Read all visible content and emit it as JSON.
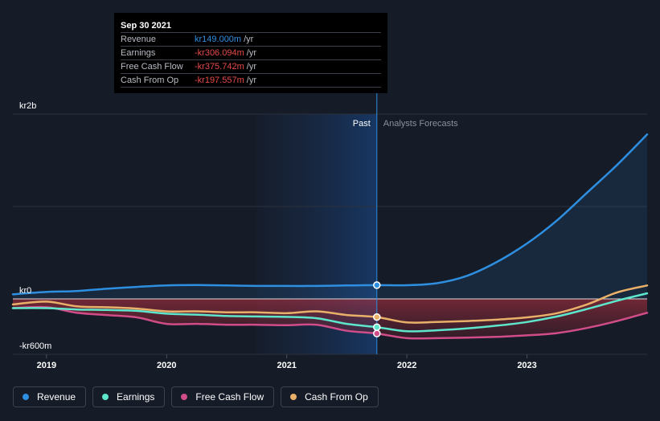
{
  "tooltip": {
    "date": "Sep 30 2021",
    "rows": [
      {
        "label": "Revenue",
        "value": "kr149.000m",
        "unit": "/yr",
        "color": "#2e8fe0"
      },
      {
        "label": "Earnings",
        "value": "-kr306.094m",
        "unit": "/yr",
        "color": "#e84a4a"
      },
      {
        "label": "Free Cash Flow",
        "value": "-kr375.742m",
        "unit": "/yr",
        "color": "#e84a4a"
      },
      {
        "label": "Cash From Op",
        "value": "-kr197.557m",
        "unit": "/yr",
        "color": "#e84a4a"
      }
    ]
  },
  "legend": [
    {
      "label": "Revenue",
      "color": "#2e8fe0"
    },
    {
      "label": "Earnings",
      "color": "#5ee6cc"
    },
    {
      "label": "Free Cash Flow",
      "color": "#d14d8a"
    },
    {
      "label": "Cash From Op",
      "color": "#e9b06a"
    }
  ],
  "chart_data": {
    "type": "line",
    "y_tick_labels": [
      "kr2b",
      "kr0",
      "-kr600m"
    ],
    "y_ticks": [
      2000,
      0,
      -600
    ],
    "x_tick_labels": [
      "2019",
      "2020",
      "2021",
      "2022",
      "2023"
    ],
    "x_ticks": [
      2019.0,
      2020.0,
      2021.0,
      2022.0,
      2023.0
    ],
    "xlim": [
      2018.72,
      2024.0
    ],
    "ylim": [
      -600,
      2000
    ],
    "region_labels": {
      "past": "Past",
      "forecast": "Analysts Forecasts"
    },
    "highlight_start": 2020.75,
    "divider": 2021.75,
    "series": [
      {
        "name": "Revenue",
        "color": "#2e8fe0",
        "x": [
          2018.72,
          2019.0,
          2019.25,
          2019.5,
          2019.75,
          2020.0,
          2020.25,
          2020.5,
          2020.75,
          2021.0,
          2021.25,
          2021.5,
          2021.75,
          2022.0,
          2022.25,
          2022.5,
          2022.75,
          2023.0,
          2023.25,
          2023.5,
          2023.75,
          2024.0
        ],
        "y": [
          50,
          75,
          85,
          110,
          130,
          145,
          150,
          145,
          140,
          140,
          140,
          145,
          149,
          148,
          170,
          250,
          400,
          600,
          850,
          1150,
          1450,
          1780
        ]
      },
      {
        "name": "Earnings",
        "color": "#5ee6cc",
        "x": [
          2018.72,
          2019.0,
          2019.25,
          2019.5,
          2019.75,
          2020.0,
          2020.25,
          2020.5,
          2020.75,
          2021.0,
          2021.25,
          2021.5,
          2021.75,
          2022.0,
          2022.25,
          2022.5,
          2022.75,
          2023.0,
          2023.25,
          2023.5,
          2023.75,
          2024.0
        ],
        "y": [
          -100,
          -100,
          -115,
          -120,
          -130,
          -160,
          -170,
          -185,
          -190,
          -195,
          -210,
          -270,
          -306,
          -350,
          -340,
          -320,
          -290,
          -250,
          -190,
          -110,
          -20,
          60
        ]
      },
      {
        "name": "Free Cash Flow",
        "color": "#d14d8a",
        "x": [
          2018.72,
          2019.0,
          2019.25,
          2019.5,
          2019.75,
          2020.0,
          2020.25,
          2020.5,
          2020.75,
          2021.0,
          2021.25,
          2021.5,
          2021.75,
          2022.0,
          2022.25,
          2022.5,
          2022.75,
          2023.0,
          2023.25,
          2023.5,
          2023.75,
          2024.0
        ],
        "y": [
          -100,
          -90,
          -150,
          -175,
          -200,
          -270,
          -270,
          -280,
          -280,
          -285,
          -280,
          -345,
          -375,
          -425,
          -425,
          -420,
          -410,
          -395,
          -370,
          -315,
          -240,
          -150
        ]
      },
      {
        "name": "Cash From Op",
        "color": "#e9b06a",
        "x": [
          2018.72,
          2019.0,
          2019.25,
          2019.5,
          2019.75,
          2020.0,
          2020.25,
          2020.5,
          2020.75,
          2021.0,
          2021.25,
          2021.5,
          2021.75,
          2022.0,
          2022.25,
          2022.5,
          2022.75,
          2023.0,
          2023.25,
          2023.5,
          2023.75,
          2024.0
        ],
        "y": [
          -60,
          -30,
          -80,
          -90,
          -105,
          -135,
          -135,
          -145,
          -145,
          -155,
          -135,
          -175,
          -197,
          -255,
          -250,
          -240,
          -225,
          -200,
          -155,
          -60,
          70,
          145
        ]
      }
    ],
    "highlight_points": [
      {
        "series": "Revenue",
        "x": 2021.75,
        "y": 149
      },
      {
        "series": "Earnings",
        "x": 2021.75,
        "y": -306
      },
      {
        "series": "Free Cash Flow",
        "x": 2021.75,
        "y": -375
      },
      {
        "series": "Cash From Op",
        "x": 2021.75,
        "y": -197
      }
    ]
  }
}
